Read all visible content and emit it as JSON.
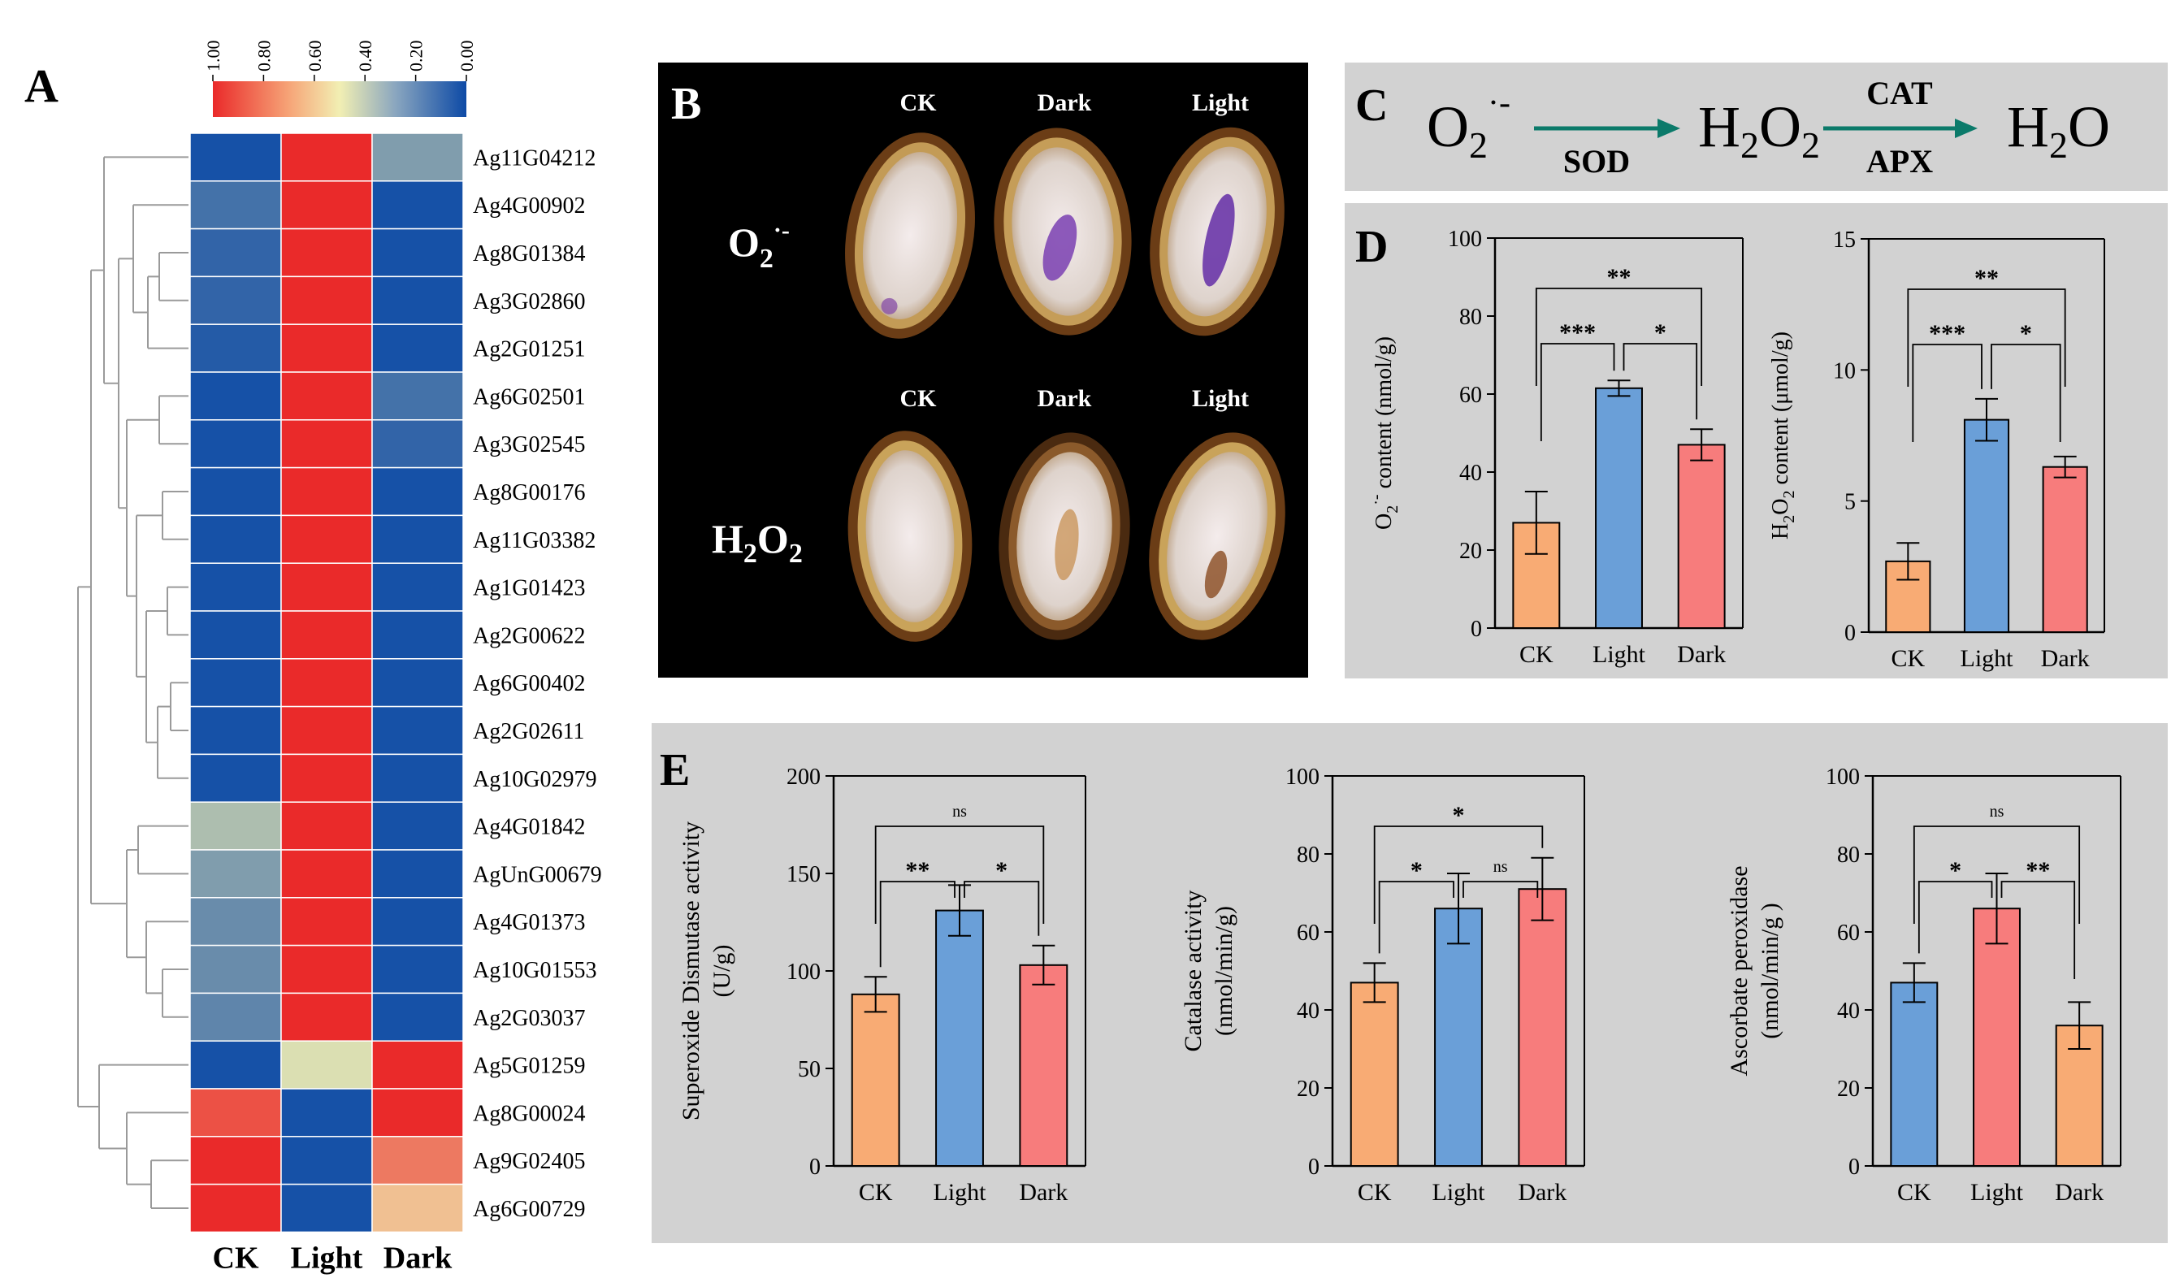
{
  "panels": {
    "A": "A",
    "B": "B",
    "C": "C",
    "D": "D",
    "E": "E"
  },
  "colors": {
    "low": "#0d4aa6",
    "mid": "#f2efb3",
    "high": "#ea2a2a",
    "bar_orange": "#f8ab74",
    "bar_blue": "#6a9fd8",
    "bar_red": "#f77c7c",
    "panel_gray": "#d2d2d2",
    "arrow_teal": "#0b7a6a"
  },
  "heatmap": {
    "colorbar_ticks": [
      "1.00",
      "0.80",
      "0.60",
      "0.40",
      "0.20",
      "0.00"
    ],
    "columns": [
      "CK",
      "Light",
      "Dark"
    ],
    "genes": [
      "Ag11G04212",
      "Ag4G00902",
      "Ag8G01384",
      "Ag3G02860",
      "Ag2G01251",
      "Ag6G02501",
      "Ag3G02545",
      "Ag8G00176",
      "Ag11G03382",
      "Ag1G01423",
      "Ag2G00622",
      "Ag6G00402",
      "Ag2G02611",
      "Ag10G02979",
      "Ag4G01842",
      "AgUnG00679",
      "Ag4G01373",
      "Ag10G01553",
      "Ag2G03037",
      "Ag5G01259",
      "Ag8G00024",
      "Ag9G02405",
      "Ag6G00729"
    ],
    "values": [
      [
        0.02,
        1.0,
        0.25
      ],
      [
        0.12,
        1.0,
        0.02
      ],
      [
        0.08,
        1.0,
        0.02
      ],
      [
        0.08,
        1.0,
        0.02
      ],
      [
        0.05,
        1.0,
        0.02
      ],
      [
        0.02,
        1.0,
        0.12
      ],
      [
        0.02,
        1.0,
        0.08
      ],
      [
        0.02,
        1.0,
        0.02
      ],
      [
        0.02,
        1.0,
        0.02
      ],
      [
        0.02,
        1.0,
        0.02
      ],
      [
        0.02,
        1.0,
        0.02
      ],
      [
        0.02,
        1.0,
        0.02
      ],
      [
        0.02,
        1.0,
        0.02
      ],
      [
        0.02,
        1.0,
        0.02
      ],
      [
        0.35,
        1.0,
        0.02
      ],
      [
        0.25,
        1.0,
        0.02
      ],
      [
        0.2,
        1.0,
        0.02
      ],
      [
        0.2,
        1.0,
        0.02
      ],
      [
        0.18,
        1.0,
        0.02
      ],
      [
        0.02,
        0.45,
        1.0
      ],
      [
        0.9,
        0.02,
        1.0
      ],
      [
        1.0,
        0.02,
        0.8
      ],
      [
        1.0,
        0.02,
        0.62
      ]
    ]
  },
  "photo": {
    "col_labels_top": [
      "CK",
      "Dark",
      "Light"
    ],
    "col_labels_bottom": [
      "CK",
      "Dark",
      "Light"
    ],
    "row_label_top": "O",
    "row_label_top_sub": "2",
    "row_label_top_sup": "·-",
    "row_label_bottom": "H",
    "row_label_bottom_sub1": "2",
    "row_label_bottom_mid": "O",
    "row_label_bottom_sub2": "2"
  },
  "pathway": {
    "o2": "O",
    "o2_sub": "2",
    "o2_sup": "·-",
    "h2o2_h": "H",
    "h2o2_sub1": "2",
    "h2o2_o": "O",
    "h2o2_sub2": "2",
    "h2o_h": "H",
    "h2o_sub": "2",
    "h2o_o": "O",
    "enzyme1": "SOD",
    "enzyme2_top": "CAT",
    "enzyme2_bottom": "APX"
  },
  "chart_data": [
    {
      "id": "D1",
      "type": "bar",
      "ylabel": "O2·- content (nmol/g)",
      "ylabel_parts": {
        "a": "O",
        "sub": "2",
        "sup": "·-",
        "b": " content (nmol/g)"
      },
      "categories": [
        "CK",
        "Light",
        "Dark"
      ],
      "values": [
        27,
        61.5,
        47
      ],
      "errors": [
        8,
        2,
        4
      ],
      "ylim": [
        0,
        100
      ],
      "yticks": [
        0,
        20,
        40,
        60,
        80,
        100
      ],
      "bar_colors": [
        "#f8ab74",
        "#6a9fd8",
        "#f77c7c"
      ],
      "significance": [
        {
          "from": 0,
          "to": 1,
          "label": "***",
          "level": 1
        },
        {
          "from": 1,
          "to": 2,
          "label": "*",
          "level": 1
        },
        {
          "from": 0,
          "to": 2,
          "label": "**",
          "level": 2
        }
      ]
    },
    {
      "id": "D2",
      "type": "bar",
      "ylabel": "H2O2 content (μmol/g)",
      "ylabel_parts": {
        "a": "H",
        "sub": "2",
        "b": "O",
        "sub2": "2",
        "c": " content (μmol/g)"
      },
      "categories": [
        "CK",
        "Light",
        "Dark"
      ],
      "values": [
        2.7,
        8.1,
        6.3
      ],
      "errors": [
        0.7,
        0.8,
        0.4
      ],
      "ylim": [
        0,
        15
      ],
      "yticks": [
        0,
        5,
        10,
        15
      ],
      "bar_colors": [
        "#f8ab74",
        "#6a9fd8",
        "#f77c7c"
      ],
      "significance": [
        {
          "from": 0,
          "to": 1,
          "label": "***",
          "level": 1
        },
        {
          "from": 1,
          "to": 2,
          "label": "*",
          "level": 1
        },
        {
          "from": 0,
          "to": 2,
          "label": "**",
          "level": 2
        }
      ]
    },
    {
      "id": "E1",
      "type": "bar",
      "ylabel_lines": [
        "Superoxide Dismutase activity",
        "(U/g)"
      ],
      "categories": [
        "CK",
        "Light",
        "Dark"
      ],
      "values": [
        88,
        131,
        103
      ],
      "errors": [
        9,
        13,
        10
      ],
      "ylim": [
        0,
        200
      ],
      "yticks": [
        0,
        50,
        100,
        150,
        200
      ],
      "bar_colors": [
        "#f8ab74",
        "#6a9fd8",
        "#f77c7c"
      ],
      "significance": [
        {
          "from": 0,
          "to": 1,
          "label": "**",
          "level": 1
        },
        {
          "from": 1,
          "to": 2,
          "label": "*",
          "level": 1
        },
        {
          "from": 0,
          "to": 2,
          "label": "ns",
          "level": 2
        }
      ]
    },
    {
      "id": "E2",
      "type": "bar",
      "ylabel_lines": [
        "Catalase activity",
        "(nmol/min/g)"
      ],
      "categories": [
        "CK",
        "Light",
        "Dark"
      ],
      "values": [
        47,
        66,
        71
      ],
      "errors": [
        5,
        9,
        8
      ],
      "ylim": [
        0,
        100
      ],
      "yticks": [
        0,
        20,
        40,
        60,
        80,
        100
      ],
      "bar_colors": [
        "#f8ab74",
        "#6a9fd8",
        "#f77c7c"
      ],
      "significance": [
        {
          "from": 0,
          "to": 1,
          "label": "*",
          "level": 1
        },
        {
          "from": 1,
          "to": 2,
          "label": "ns",
          "level": 1
        },
        {
          "from": 0,
          "to": 2,
          "label": "*",
          "level": 2
        }
      ]
    },
    {
      "id": "E3",
      "type": "bar",
      "ylabel_lines": [
        "Ascorbate peroxidase",
        "(nmol/min/g )"
      ],
      "categories": [
        "CK",
        "Light",
        "Dark"
      ],
      "values": [
        47,
        66,
        36
      ],
      "errors": [
        5,
        9,
        6
      ],
      "ylim": [
        0,
        100
      ],
      "yticks": [
        0,
        20,
        40,
        60,
        80,
        100
      ],
      "bar_colors": [
        "#6a9fd8",
        "#f77c7c",
        "#f8ab74"
      ],
      "significance": [
        {
          "from": 0,
          "to": 1,
          "label": "*",
          "level": 1
        },
        {
          "from": 1,
          "to": 2,
          "label": "**",
          "level": 1
        },
        {
          "from": 0,
          "to": 2,
          "label": "ns",
          "level": 2
        }
      ]
    }
  ]
}
